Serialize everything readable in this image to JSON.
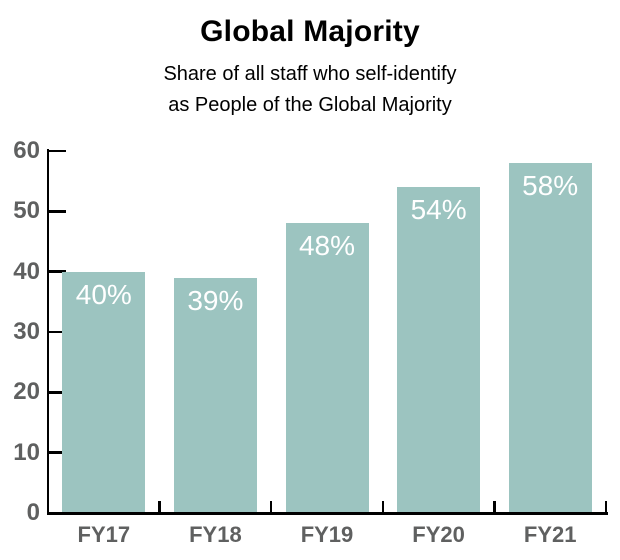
{
  "page": {
    "background": "#ffffff"
  },
  "chart_data": {
    "type": "bar",
    "title": "Global Majority",
    "subtitle_lines": [
      "Share of all staff who self-identify",
      "as People of the Global Majority"
    ],
    "categories": [
      "FY17",
      "FY18",
      "FY19",
      "FY20",
      "FY21"
    ],
    "values": [
      40,
      39,
      48,
      54,
      58
    ],
    "bar_labels": [
      "40%",
      "39%",
      "48%",
      "54%",
      "58%"
    ],
    "xlabel": "",
    "ylabel": "",
    "ylim": [
      0,
      60
    ],
    "yticks": [
      0,
      10,
      20,
      30,
      40,
      50,
      60
    ],
    "grid": false,
    "legend": "none",
    "colors": {
      "bar": "#9cc4c0",
      "bar_label": "#ffffff",
      "axis": "#000000",
      "tick_label": "#5f6060",
      "title": "#000000"
    }
  }
}
